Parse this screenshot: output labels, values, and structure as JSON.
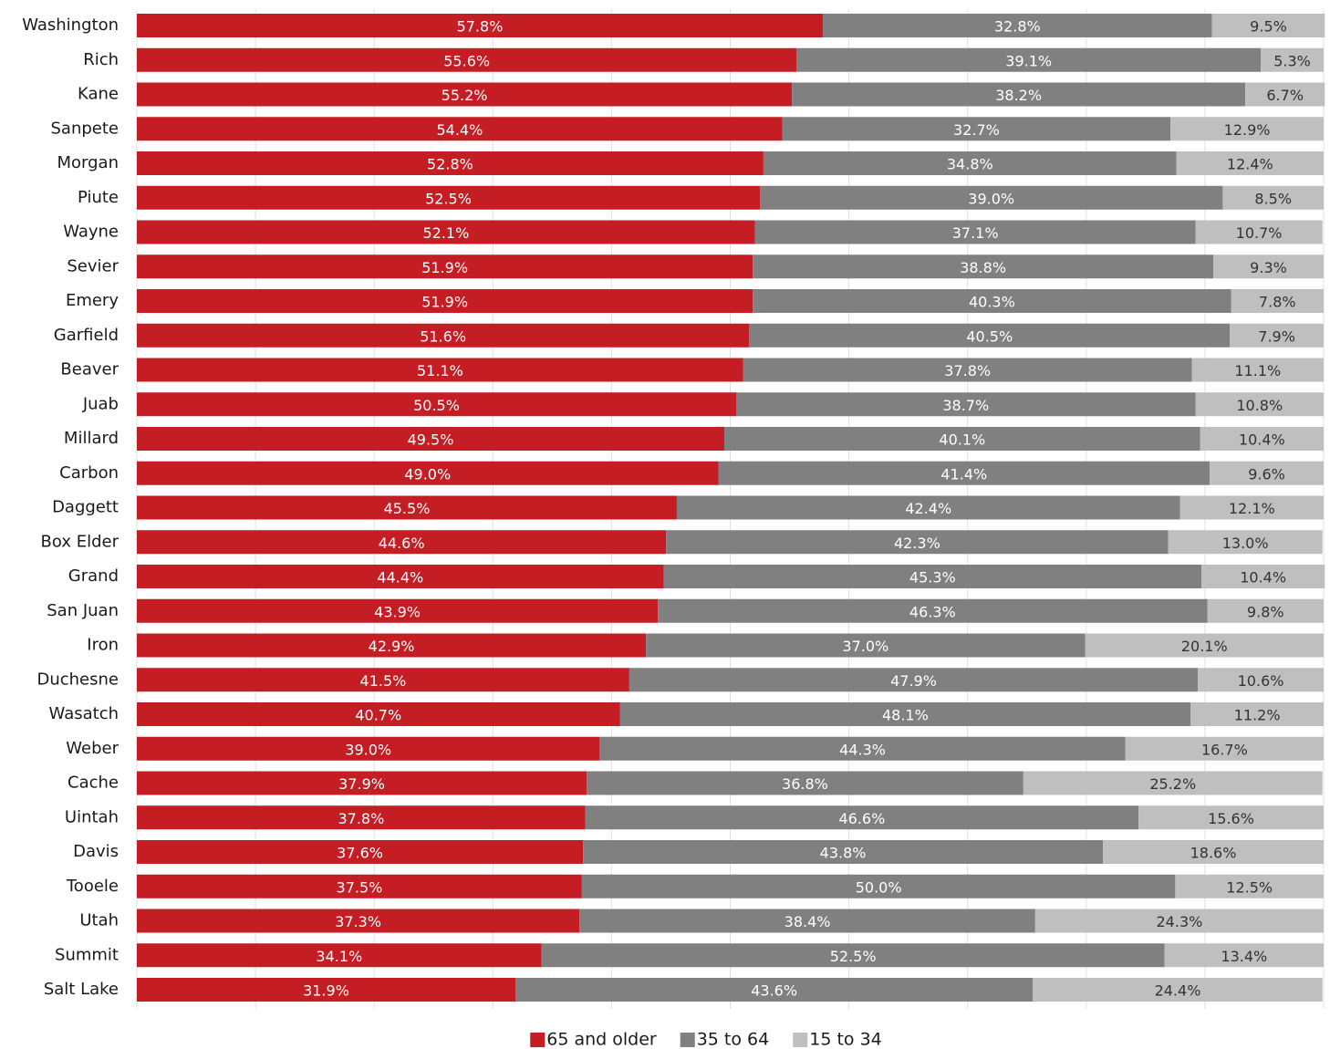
{
  "chart_data": {
    "type": "bar",
    "orientation": "horizontal",
    "stacked": true,
    "categories": [
      "Washington",
      "Rich",
      "Kane",
      "Sanpete",
      "Morgan",
      "Piute",
      "Wayne",
      "Sevier",
      "Emery",
      "Garfield",
      "Beaver",
      "Juab",
      "Millard",
      "Carbon",
      "Daggett",
      "Box Elder",
      "Grand",
      "San Juan",
      "Iron",
      "Duchesne",
      "Wasatch",
      "Weber",
      "Cache",
      "Uintah",
      "Davis",
      "Tooele",
      "Utah",
      "Summit",
      "Salt Lake"
    ],
    "series": [
      {
        "name": "65 and older",
        "color": "#c41e24",
        "values": [
          57.8,
          55.6,
          55.2,
          54.4,
          52.8,
          52.5,
          52.1,
          51.9,
          51.9,
          51.6,
          51.1,
          50.5,
          49.5,
          49.0,
          45.5,
          44.6,
          44.4,
          43.9,
          42.9,
          41.5,
          40.7,
          39.0,
          37.9,
          37.8,
          37.6,
          37.5,
          37.3,
          34.1,
          31.9
        ],
        "value_labels": [
          "57.8%",
          "55.6%",
          "55.2%",
          "54.4%",
          "52.8%",
          "52.5%",
          "52.1%",
          "51.9%",
          "51.9%",
          "51.6%",
          "51.1%",
          "50.5%",
          "49.5%",
          "49.0%",
          "45.5%",
          "44.6%",
          "44.4%",
          "43.9%",
          "42.9%",
          "41.5%",
          "40.7%",
          "39.0%",
          "37.9%",
          "37.8%",
          "37.6%",
          "37.5%",
          "37.3%",
          "34.1%",
          "31.9%"
        ]
      },
      {
        "name": "35 to 64",
        "color": "#808080",
        "values": [
          32.8,
          39.1,
          38.2,
          32.7,
          34.8,
          39.0,
          37.1,
          38.8,
          40.3,
          40.5,
          37.8,
          38.7,
          40.1,
          41.4,
          42.4,
          42.3,
          45.3,
          46.3,
          37.0,
          47.9,
          48.1,
          44.3,
          36.8,
          46.6,
          43.8,
          50.0,
          38.4,
          52.5,
          43.6
        ],
        "value_labels": [
          "32.8%",
          "39.1%",
          "38.2%",
          "32.7%",
          "34.8%",
          "39.0%",
          "37.1%",
          "38.8%",
          "40.3%",
          "40.5%",
          "37.8%",
          "38.7%",
          "40.1%",
          "41.4%",
          "42.4%",
          "42.3%",
          "45.3%",
          "46.3%",
          "37.0%",
          "47.9%",
          "48.1%",
          "44.3%",
          "36.8%",
          "46.6%",
          "43.8%",
          "50.0%",
          "38.4%",
          "52.5%",
          "43.6%"
        ]
      },
      {
        "name": "15 to 34",
        "color": "#bfbfbf",
        "values": [
          9.5,
          5.3,
          6.7,
          12.9,
          12.4,
          8.5,
          10.7,
          9.3,
          7.8,
          7.9,
          11.1,
          10.8,
          10.4,
          9.6,
          12.1,
          13.0,
          10.4,
          9.8,
          20.1,
          10.6,
          11.2,
          16.7,
          25.2,
          15.6,
          18.6,
          12.5,
          24.3,
          13.4,
          24.4
        ],
        "value_labels": [
          "9.5%",
          "5.3%",
          "6.7%",
          "12.9%",
          "12.4%",
          "8.5%",
          "10.7%",
          "9.3%",
          "7.8%",
          "7.9%",
          "11.1%",
          "10.8%",
          "10.4%",
          "9.6%",
          "12.1%",
          "13.0%",
          "10.4%",
          "9.8%",
          "20.1%",
          "10.6%",
          "11.2%",
          "16.7%",
          "25.2%",
          "15.6%",
          "18.6%",
          "12.5%",
          "24.3%",
          "13.4%",
          "24.4%"
        ]
      }
    ],
    "xlim": [
      0,
      100
    ],
    "xticks": [
      0,
      10,
      20,
      30,
      40,
      50,
      60,
      70,
      80,
      90,
      100
    ],
    "grid": true,
    "legend": "bottom"
  }
}
